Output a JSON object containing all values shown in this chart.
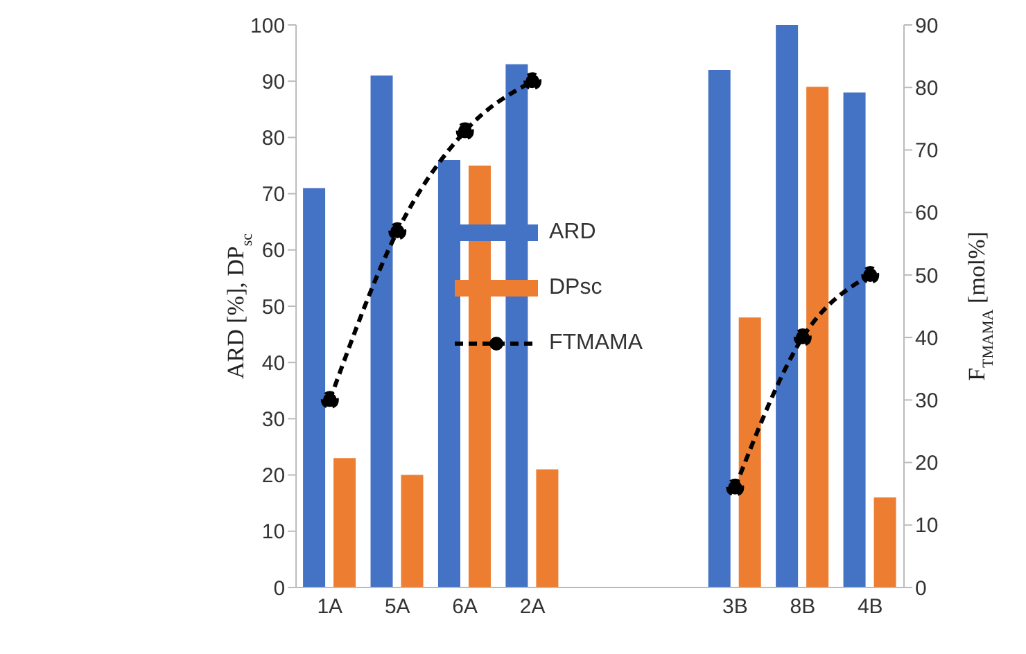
{
  "chart_data": {
    "type": "bar",
    "categories": [
      "1A",
      "5A",
      "6A",
      "2A",
      null,
      null,
      "3B",
      "8B",
      "4B"
    ],
    "series": [
      {
        "name": "ARD",
        "color": "#4472c4",
        "values": [
          71,
          91,
          76,
          93,
          null,
          null,
          92,
          100,
          88
        ]
      },
      {
        "name": "DPsc",
        "color": "#ed7d31",
        "values": [
          23,
          20,
          75,
          21,
          null,
          null,
          48,
          89,
          16
        ]
      },
      {
        "name": "FTMAMA",
        "type": "line",
        "axis": "y2",
        "color": "#000000",
        "marker": "circle",
        "line_style": "dashed",
        "values": [
          30,
          57,
          73,
          81,
          null,
          null,
          16,
          40,
          50
        ]
      }
    ],
    "ylabel": "ARD [%], DP$_{sc}$",
    "y2label": "F$_{TMAMA}$ [mol%]",
    "ylim": [
      0,
      100
    ],
    "yticks": [
      0,
      10,
      20,
      30,
      40,
      50,
      60,
      70,
      80,
      90,
      100
    ],
    "y2lim": [
      0,
      90
    ],
    "y2ticks": [
      0,
      10,
      20,
      30,
      40,
      50,
      60,
      70,
      80,
      90
    ],
    "legend": "center"
  }
}
